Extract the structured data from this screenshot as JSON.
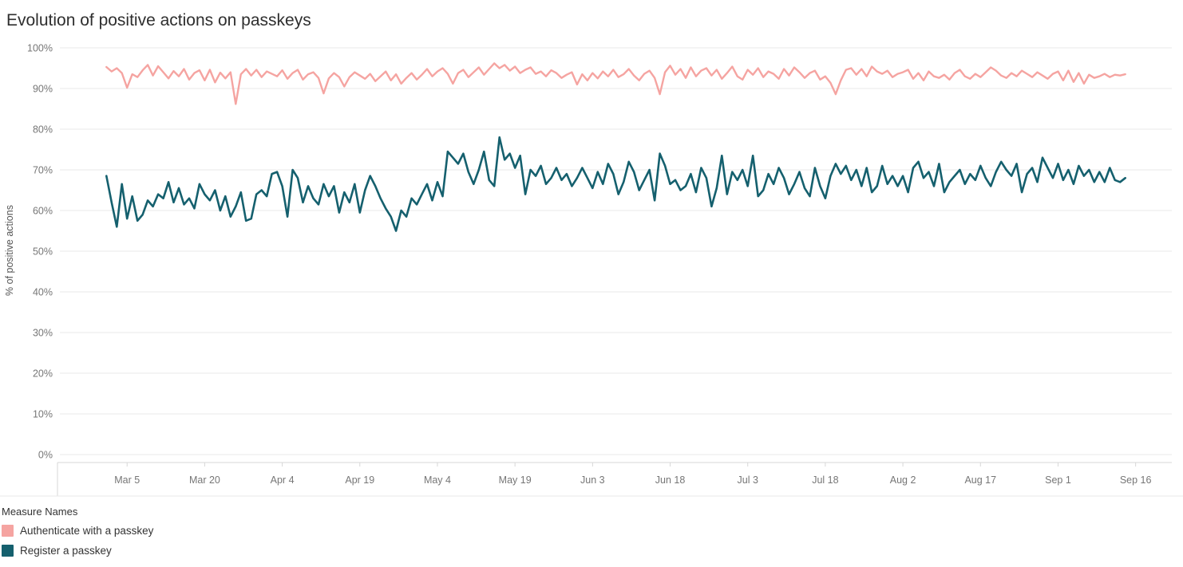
{
  "chart_data": {
    "type": "line",
    "title": "Evolution of positive actions on passkeys",
    "xlabel": "",
    "ylabel": "% of positive actions",
    "ylim": [
      0,
      100
    ],
    "y_ticks": [
      0,
      10,
      20,
      30,
      40,
      50,
      60,
      70,
      80,
      90,
      100
    ],
    "y_tick_suffix": "%",
    "grid": "horizontal",
    "legend_position": "bottom-left",
    "x_unit": "day (daily points, day 0 = Mar 1)",
    "x_domain": [
      -9,
      206
    ],
    "x_ticks": [
      {
        "day": 4,
        "label": "Mar 5"
      },
      {
        "day": 19,
        "label": "Mar 20"
      },
      {
        "day": 34,
        "label": "Apr 4"
      },
      {
        "day": 49,
        "label": "Apr 19"
      },
      {
        "day": 64,
        "label": "May 4"
      },
      {
        "day": 79,
        "label": "May 19"
      },
      {
        "day": 94,
        "label": "Jun 3"
      },
      {
        "day": 109,
        "label": "Jun 18"
      },
      {
        "day": 124,
        "label": "Jul 3"
      },
      {
        "day": 139,
        "label": "Jul 18"
      },
      {
        "day": 154,
        "label": "Aug 2"
      },
      {
        "day": 169,
        "label": "Aug 17"
      },
      {
        "day": 184,
        "label": "Sep 1"
      },
      {
        "day": 199,
        "label": "Sep 16"
      }
    ],
    "series": [
      {
        "name": "Authenticate with a passkey",
        "color": "#f5a4a1",
        "values": [
          95.3,
          94.2,
          95.0,
          93.8,
          90.2,
          93.5,
          92.8,
          94.5,
          95.8,
          93.2,
          95.5,
          94.0,
          92.5,
          94.3,
          93.0,
          94.8,
          92.2,
          93.8,
          94.5,
          92.0,
          94.6,
          91.5,
          93.9,
          92.5,
          94.0,
          86.2,
          93.5,
          94.8,
          93.2,
          94.6,
          92.8,
          94.2,
          93.6,
          93.0,
          94.5,
          92.4,
          93.8,
          94.6,
          92.2,
          93.5,
          94.0,
          92.6,
          88.8,
          92.5,
          93.8,
          92.8,
          90.5,
          92.8,
          94.0,
          93.2,
          92.4,
          93.6,
          91.8,
          93.0,
          94.2,
          92.0,
          93.5,
          91.2,
          92.6,
          93.8,
          92.2,
          93.4,
          94.8,
          93.0,
          94.2,
          95.0,
          93.6,
          91.2,
          93.8,
          94.6,
          92.8,
          94.0,
          95.2,
          93.4,
          94.8,
          96.2,
          95.0,
          95.8,
          94.4,
          95.4,
          93.8,
          94.6,
          95.2,
          93.6,
          94.2,
          93.0,
          94.5,
          93.8,
          92.6,
          93.4,
          94.0,
          91.0,
          93.5,
          92.0,
          93.8,
          92.5,
          94.2,
          93.0,
          94.6,
          92.8,
          93.5,
          94.8,
          93.2,
          92.0,
          93.6,
          94.4,
          92.6,
          88.6,
          94.0,
          95.6,
          93.4,
          94.8,
          92.6,
          95.2,
          93.0,
          94.4,
          95.0,
          93.2,
          94.6,
          92.4,
          93.8,
          95.4,
          93.0,
          92.2,
          94.6,
          93.4,
          95.0,
          92.8,
          94.2,
          93.6,
          92.4,
          94.8,
          93.2,
          95.2,
          94.0,
          92.6,
          93.8,
          94.4,
          92.2,
          93.0,
          91.4,
          88.6,
          92.0,
          94.6,
          95.0,
          93.4,
          94.8,
          93.0,
          95.4,
          94.2,
          93.6,
          94.4,
          92.8,
          93.6,
          94.0,
          94.6,
          92.4,
          93.8,
          92.0,
          94.2,
          93.0,
          92.6,
          93.4,
          92.2,
          93.8,
          94.6,
          93.0,
          92.4,
          93.6,
          92.8,
          94.0,
          95.2,
          94.4,
          93.2,
          92.6,
          93.8,
          93.0,
          94.4,
          93.6,
          92.8,
          94.0,
          93.2,
          92.4,
          93.6,
          94.2,
          92.0,
          94.4,
          91.6,
          93.8,
          91.2,
          93.4,
          92.6,
          93.0,
          93.6,
          92.8,
          93.4,
          93.2,
          93.5
        ]
      },
      {
        "name": "Register a passkey",
        "color": "#15606e",
        "values": [
          68.5,
          62.0,
          56.0,
          66.5,
          58.0,
          63.5,
          57.5,
          59.0,
          62.5,
          61.0,
          64.0,
          63.0,
          67.0,
          62.0,
          65.5,
          61.5,
          63.0,
          60.5,
          66.5,
          64.0,
          62.5,
          65.0,
          60.0,
          63.5,
          58.5,
          61.0,
          64.5,
          57.5,
          58.0,
          64.0,
          65.0,
          63.5,
          69.0,
          69.5,
          66.0,
          58.5,
          70.0,
          68.0,
          62.0,
          66.0,
          63.0,
          61.5,
          66.5,
          63.5,
          66.0,
          59.5,
          64.5,
          62.0,
          66.5,
          59.5,
          65.0,
          68.5,
          66.0,
          63.0,
          60.5,
          58.5,
          55.0,
          60.0,
          58.5,
          63.0,
          61.5,
          64.0,
          66.5,
          62.5,
          67.0,
          63.5,
          74.5,
          73.0,
          71.5,
          74.0,
          69.5,
          66.5,
          70.0,
          74.5,
          67.5,
          66.0,
          78.0,
          72.5,
          74.0,
          70.5,
          73.5,
          64.0,
          70.0,
          68.5,
          71.0,
          66.5,
          68.0,
          70.5,
          67.5,
          69.0,
          66.0,
          68.0,
          70.5,
          68.0,
          65.5,
          69.5,
          66.5,
          71.5,
          69.0,
          64.0,
          67.0,
          72.0,
          69.5,
          65.0,
          67.5,
          70.0,
          62.5,
          74.0,
          71.0,
          66.5,
          67.5,
          65.0,
          66.0,
          69.0,
          64.5,
          70.5,
          68.0,
          61.0,
          65.5,
          73.5,
          64.0,
          69.5,
          67.5,
          70.0,
          66.0,
          73.5,
          63.5,
          65.0,
          69.0,
          66.5,
          70.5,
          68.0,
          64.0,
          66.5,
          69.5,
          65.5,
          63.5,
          70.5,
          66.0,
          63.0,
          68.5,
          71.5,
          69.0,
          71.0,
          67.5,
          70.0,
          66.0,
          70.5,
          64.5,
          66.0,
          71.0,
          66.5,
          68.5,
          66.0,
          68.5,
          64.5,
          70.5,
          72.0,
          68.0,
          69.5,
          66.0,
          71.5,
          64.5,
          67.0,
          68.5,
          70.0,
          66.5,
          69.0,
          67.5,
          71.0,
          68.0,
          66.0,
          69.5,
          72.0,
          70.0,
          68.5,
          71.5,
          64.5,
          69.0,
          70.5,
          67.0,
          73.0,
          70.5,
          68.0,
          71.5,
          67.5,
          70.0,
          66.5,
          71.0,
          68.5,
          70.0,
          67.0,
          69.5,
          67.0,
          70.5,
          67.5,
          67.0,
          68.0
        ]
      }
    ]
  },
  "legend": {
    "title": "Measure Names",
    "items": [
      {
        "label": "Authenticate with a passkey",
        "color": "#f5a4a1"
      },
      {
        "label": "Register a passkey",
        "color": "#15606e"
      }
    ]
  },
  "colors": {
    "gridline": "#e8e8e8",
    "axis_line": "#d7d7d7",
    "tick_text": "#767676",
    "title_text": "#2e2e2e"
  }
}
